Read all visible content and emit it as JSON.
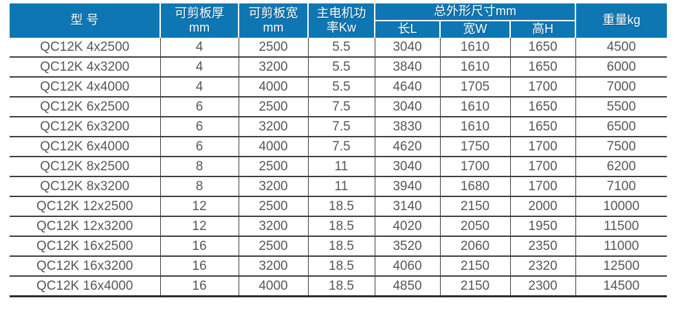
{
  "table": {
    "title_semantic": "QC12K shearing machine specification table",
    "colors": {
      "header_bg": "#0e77b3",
      "header_text": "#ffffff",
      "body_text": "#56575a",
      "grid_line": "#3f3f40"
    },
    "header": {
      "model": "型 号",
      "thickness_line1": "可剪板厚",
      "thickness_line2": "mm",
      "shear_width_line1": "可剪板宽",
      "shear_width_line2": "mm",
      "power_line1": "主电机功",
      "power_line2": "率Kw",
      "dimensions_group": "总外形尺寸mm",
      "dim_length": "长L",
      "dim_width": "宽W",
      "dim_height": "高H",
      "weight": "重量kg"
    },
    "rows": [
      {
        "model": "QC12K 4x2500",
        "thickness": "4",
        "shear_width": "2500",
        "power": "5.5",
        "length": "3040",
        "width": "1610",
        "height": "1650",
        "weight": "4500"
      },
      {
        "model": "QC12K 4x3200",
        "thickness": "4",
        "shear_width": "3200",
        "power": "5.5",
        "length": "3840",
        "width": "1610",
        "height": "1650",
        "weight": "6000"
      },
      {
        "model": "QC12K 4x4000",
        "thickness": "4",
        "shear_width": "4000",
        "power": "5.5",
        "length": "4640",
        "width": "1705",
        "height": "1700",
        "weight": "7000"
      },
      {
        "model": "QC12K 6x2500",
        "thickness": "6",
        "shear_width": "2500",
        "power": "7.5",
        "length": "3040",
        "width": "1610",
        "height": "1650",
        "weight": "5500"
      },
      {
        "model": "QC12K 6x3200",
        "thickness": "6",
        "shear_width": "3200",
        "power": "7.5",
        "length": "3830",
        "width": "1610",
        "height": "1650",
        "weight": "6500"
      },
      {
        "model": "QC12K 6x4000",
        "thickness": "6",
        "shear_width": "4000",
        "power": "7.5",
        "length": "4620",
        "width": "1750",
        "height": "1700",
        "weight": "7500"
      },
      {
        "model": "QC12K 8x2500",
        "thickness": "8",
        "shear_width": "2500",
        "power": "11",
        "length": "3040",
        "width": "1700",
        "height": "1700",
        "weight": "6200"
      },
      {
        "model": "QC12K 8x3200",
        "thickness": "8",
        "shear_width": "3200",
        "power": "11",
        "length": "3940",
        "width": "1680",
        "height": "1700",
        "weight": "7100"
      },
      {
        "model": "QC12K 12x2500",
        "thickness": "12",
        "shear_width": "2500",
        "power": "18.5",
        "length": "3140",
        "width": "2150",
        "height": "2000",
        "weight": "10000"
      },
      {
        "model": "QC12K 12x3200",
        "thickness": "12",
        "shear_width": "3200",
        "power": "18.5",
        "length": "4020",
        "width": "2050",
        "height": "1950",
        "weight": "11500"
      },
      {
        "model": "QC12K 16x2500",
        "thickness": "16",
        "shear_width": "2500",
        "power": "18.5",
        "length": "3520",
        "width": "2060",
        "height": "2350",
        "weight": "11000"
      },
      {
        "model": "QC12K 16x3200",
        "thickness": "16",
        "shear_width": "3200",
        "power": "18.5",
        "length": "4060",
        "width": "2150",
        "height": "2320",
        "weight": "12500"
      },
      {
        "model": "QC12K 16x4000",
        "thickness": "16",
        "shear_width": "4000",
        "power": "18.5",
        "length": "4850",
        "width": "2150",
        "height": "2300",
        "weight": "14500"
      }
    ]
  }
}
